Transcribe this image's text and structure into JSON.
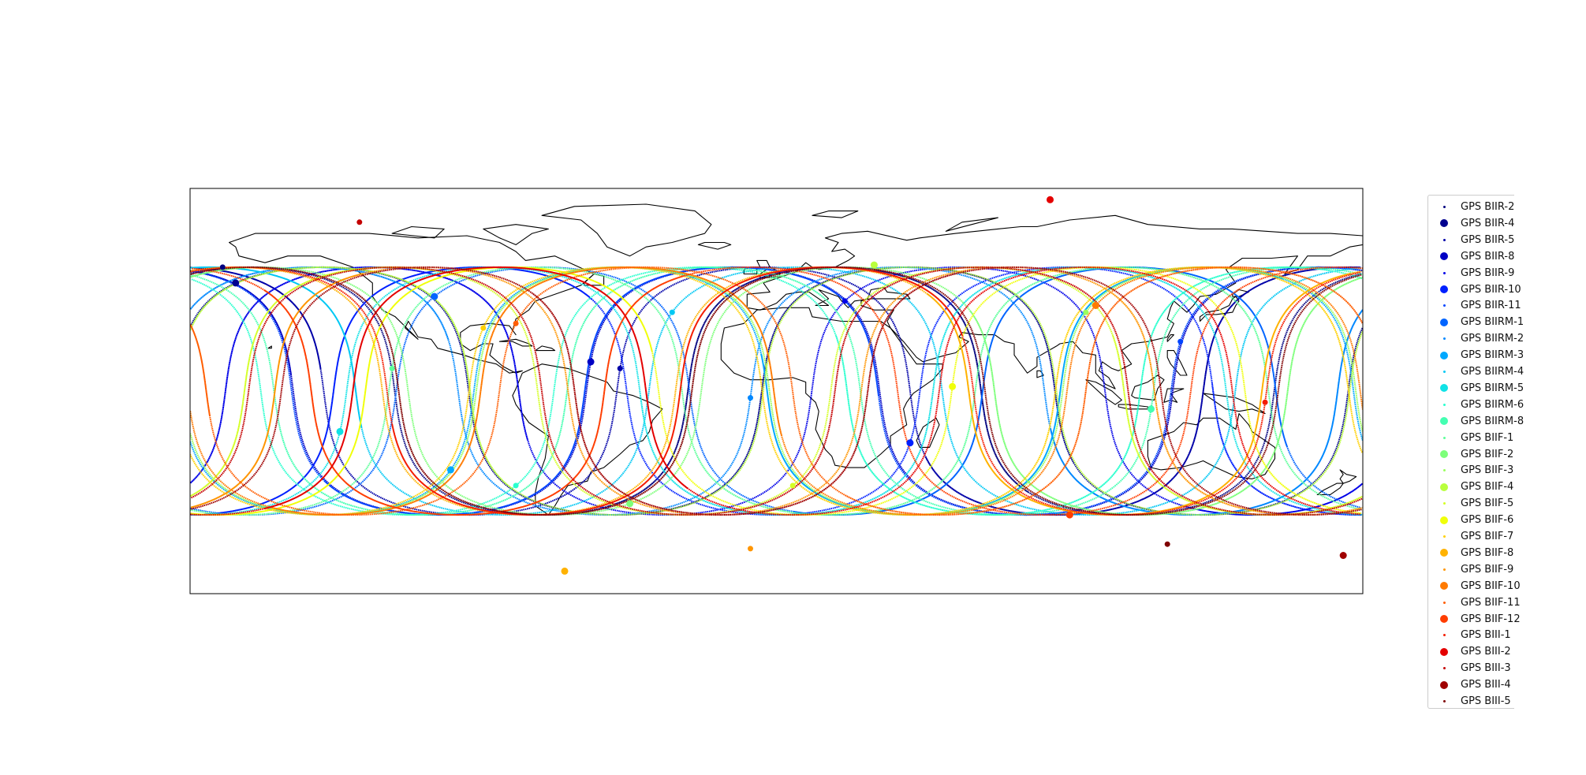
{
  "map": {
    "projection": "plate-carree",
    "extent_lon": [
      -180,
      180
    ],
    "extent_lat": [
      -90,
      90
    ],
    "coastlines": true,
    "track_model": "sinusoidal ground tracks, inclination ~55 deg, period ~0.5 sidereal day"
  },
  "chart_data": {
    "type": "scatter",
    "title": "",
    "xlabel": "",
    "ylabel": "",
    "xlim": [
      -180,
      180
    ],
    "ylim": [
      -90,
      90
    ],
    "grid": false,
    "legend_placement": "right",
    "series": [
      {
        "name": "GPS BIIR-2",
        "color": "#00007f",
        "marker": "small",
        "current": [
          -170,
          55
        ]
      },
      {
        "name": "GPS BIIR-4",
        "color": "#00008f",
        "marker": "large",
        "current": [
          -166,
          48
        ]
      },
      {
        "name": "GPS BIIR-5",
        "color": "#0000a8",
        "marker": "small",
        "current": [
          -48,
          10
        ]
      },
      {
        "name": "GPS BIIR-8",
        "color": "#0000c4",
        "marker": "large",
        "current": [
          -57,
          13
        ]
      },
      {
        "name": "GPS BIIR-9",
        "color": "#0000e8",
        "marker": "small",
        "current": [
          21,
          40
        ]
      },
      {
        "name": "GPS BIIR-10",
        "color": "#0020ff",
        "marker": "large",
        "current": [
          41,
          -23
        ]
      },
      {
        "name": "GPS BIIR-11",
        "color": "#0044ff",
        "marker": "small",
        "current": [
          124,
          22
        ]
      },
      {
        "name": "GPS BIIRM-1",
        "color": "#0064ff",
        "marker": "large",
        "current": [
          -105,
          42
        ]
      },
      {
        "name": "GPS BIIRM-2",
        "color": "#0088ff",
        "marker": "small",
        "current": [
          -8,
          -3
        ]
      },
      {
        "name": "GPS BIIRM-3",
        "color": "#00a8ff",
        "marker": "large",
        "current": [
          -100,
          -35
        ]
      },
      {
        "name": "GPS BIIRM-4",
        "color": "#00c8f4",
        "marker": "small",
        "current": [
          -32,
          35
        ]
      },
      {
        "name": "GPS BIIRM-5",
        "color": "#10e2e6",
        "marker": "large",
        "current": [
          -134,
          -18
        ]
      },
      {
        "name": "GPS BIIRM-6",
        "color": "#29ffce",
        "marker": "small",
        "current": [
          -80,
          -42
        ]
      },
      {
        "name": "GPS BIIRM-8",
        "color": "#44ffb2",
        "marker": "large",
        "current": [
          115,
          -8
        ]
      },
      {
        "name": "GPS BIIF-1",
        "color": "#5dff9a",
        "marker": "small",
        "current": [
          -118,
          10
        ]
      },
      {
        "name": "GPS BIIF-2",
        "color": "#7dff7a",
        "marker": "large",
        "current": [
          -45,
          -50
        ]
      },
      {
        "name": "GPS BIIF-3",
        "color": "#9aff5d",
        "marker": "small",
        "current": [
          95,
          35
        ]
      },
      {
        "name": "GPS BIIF-4",
        "color": "#b9ff3d",
        "marker": "large",
        "current": [
          30,
          56
        ]
      },
      {
        "name": "GPS BIIF-5",
        "color": "#d4ff24",
        "marker": "small",
        "current": [
          5,
          -42
        ]
      },
      {
        "name": "GPS BIIF-6",
        "color": "#f0ff0a",
        "marker": "large",
        "current": [
          54,
          2
        ]
      },
      {
        "name": "GPS BIIF-7",
        "color": "#ffd000",
        "marker": "small",
        "current": [
          -90,
          28
        ]
      },
      {
        "name": "GPS BIIF-8",
        "color": "#ffb200",
        "marker": "large",
        "current": [
          -65,
          -80
        ]
      },
      {
        "name": "GPS BIIF-9",
        "color": "#ff9500",
        "marker": "small",
        "current": [
          -8,
          -70
        ]
      },
      {
        "name": "GPS BIIF-10",
        "color": "#ff7a00",
        "marker": "large",
        "current": [
          98,
          38
        ]
      },
      {
        "name": "GPS BIIF-11",
        "color": "#ff5d00",
        "marker": "small",
        "current": [
          -80,
          30
        ]
      },
      {
        "name": "GPS BIIF-12",
        "color": "#ff3d00",
        "marker": "large",
        "current": [
          90,
          -55
        ]
      },
      {
        "name": "GPS BIII-1",
        "color": "#f41d00",
        "marker": "small",
        "current": [
          150,
          -5
        ]
      },
      {
        "name": "GPS BIII-2",
        "color": "#e40000",
        "marker": "large",
        "current": [
          84,
          85
        ]
      },
      {
        "name": "GPS BIII-3",
        "color": "#c40000",
        "marker": "small",
        "current": [
          -128,
          75
        ]
      },
      {
        "name": "GPS BIII-4",
        "color": "#a00000",
        "marker": "large",
        "current": [
          174,
          -73
        ]
      },
      {
        "name": "GPS BIII-5",
        "color": "#7f0000",
        "marker": "small",
        "current": [
          120,
          -68
        ]
      }
    ]
  }
}
